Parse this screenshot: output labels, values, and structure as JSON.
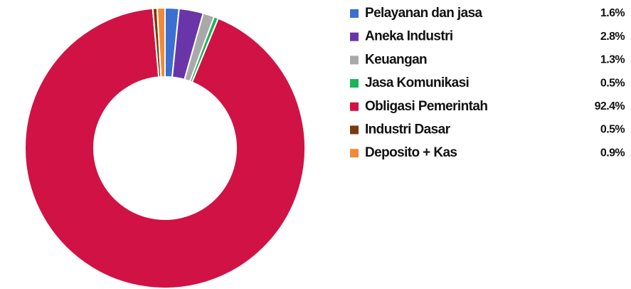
{
  "chart_data": {
    "type": "pie",
    "donut": true,
    "categories": [
      "Pelayanan dan jasa",
      "Aneka Industri",
      "Keuangan",
      "Jasa Komunikasi",
      "Obligasi Pemerintah",
      "Industri Dasar",
      "Deposito + Kas"
    ],
    "values": [
      1.6,
      2.8,
      1.3,
      0.5,
      92.4,
      0.5,
      0.9
    ],
    "value_labels": [
      "1.6%",
      "2.8%",
      "1.3%",
      "0.5%",
      "92.4%",
      "0.5%",
      "0.9%"
    ],
    "colors": [
      "#3b6fd1",
      "#6a35a8",
      "#a9a9a9",
      "#19b45a",
      "#d01245",
      "#7a3a10",
      "#f08a3a"
    ],
    "legend": "right"
  }
}
